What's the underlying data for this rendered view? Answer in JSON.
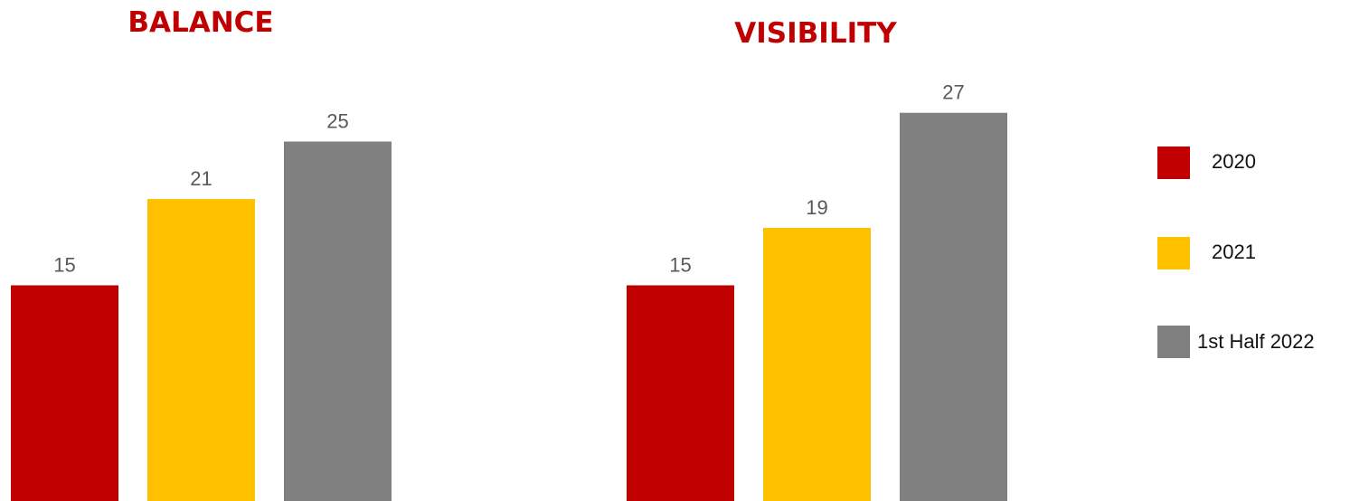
{
  "chart_data": [
    {
      "type": "bar",
      "title": "BALANCE",
      "categories": [
        "2020",
        "2021",
        "1st Half 2022"
      ],
      "values": [
        15,
        21,
        25
      ],
      "colors": [
        "#c00000",
        "#ffc000",
        "#808080"
      ],
      "grid": false,
      "data_labels": true
    },
    {
      "type": "bar",
      "title": "VISIBILITY",
      "categories": [
        "2020",
        "2021",
        "1st Half 2022"
      ],
      "values": [
        15,
        19,
        27
      ],
      "colors": [
        "#c00000",
        "#ffc000",
        "#808080"
      ],
      "grid": false,
      "data_labels": true
    }
  ],
  "legend": {
    "placement": "right",
    "items": [
      {
        "label": "2020",
        "color": "#c00000"
      },
      {
        "label": "2021",
        "color": "#ffc000"
      },
      {
        "label": "1st Half 2022",
        "color": "#808080"
      }
    ]
  }
}
